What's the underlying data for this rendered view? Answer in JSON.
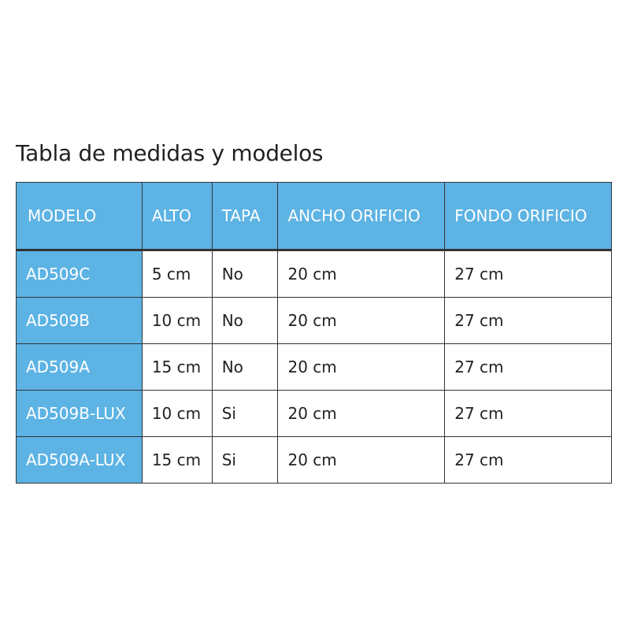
{
  "title": "Tabla de medidas y modelos",
  "colors": {
    "header_bg": "#5db3e4",
    "header_text": "#ffffff",
    "border": "#333333"
  },
  "table": {
    "headers": [
      "MODELO",
      "ALTO",
      "TAPA",
      "ANCHO ORIFICIO",
      "FONDO ORIFICIO"
    ],
    "rows": [
      [
        "AD509C",
        "5 cm",
        "No",
        "20 cm",
        "27 cm"
      ],
      [
        "AD509B",
        "10 cm",
        "No",
        "20 cm",
        "27 cm"
      ],
      [
        "AD509A",
        "15 cm",
        "No",
        "20 cm",
        "27 cm"
      ],
      [
        "AD509B-LUX",
        "10 cm",
        "Si",
        "20 cm",
        "27 cm"
      ],
      [
        "AD509A-LUX",
        "15 cm",
        "Si",
        "20 cm",
        "27 cm"
      ]
    ]
  }
}
